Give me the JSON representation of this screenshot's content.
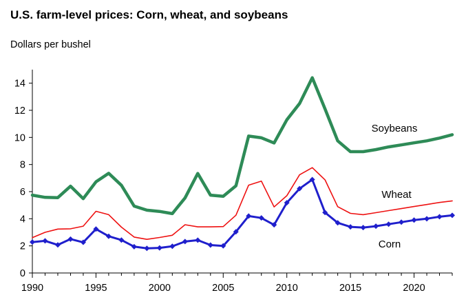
{
  "chart_data": {
    "type": "line",
    "title": "U.S. farm-level prices: Corn, wheat, and soybeans",
    "ylabel": "Dollars per bushel",
    "xlabel": "",
    "xlim": [
      1990,
      2023
    ],
    "ylim": [
      0,
      15
    ],
    "x_ticks": [
      1990,
      1995,
      2000,
      2005,
      2010,
      2015,
      2020
    ],
    "y_ticks": [
      0,
      2,
      4,
      6,
      8,
      10,
      12,
      14
    ],
    "grid": false,
    "x": [
      1990,
      1991,
      1992,
      1993,
      1994,
      1995,
      1996,
      1997,
      1998,
      1999,
      2000,
      2001,
      2002,
      2003,
      2004,
      2005,
      2006,
      2007,
      2008,
      2009,
      2010,
      2011,
      2012,
      2013,
      2014,
      2015,
      2016,
      2017,
      2018,
      2019,
      2020,
      2021,
      2022,
      2023
    ],
    "series": [
      {
        "name": "Soybeans",
        "color": "#2e8b57",
        "values": [
          5.74,
          5.58,
          5.56,
          6.4,
          5.48,
          6.72,
          7.35,
          6.47,
          4.93,
          4.63,
          4.54,
          4.38,
          5.53,
          7.34,
          5.74,
          5.66,
          6.43,
          10.1,
          9.97,
          9.59,
          11.3,
          12.5,
          14.4,
          12.1,
          9.75,
          8.95,
          8.95,
          9.1,
          9.3,
          9.45,
          9.6,
          9.75,
          9.95,
          10.2
        ]
      },
      {
        "name": "Wheat",
        "color": "#ee1111",
        "values": [
          2.61,
          3.0,
          3.24,
          3.26,
          3.45,
          4.55,
          4.3,
          3.38,
          2.65,
          2.48,
          2.62,
          2.78,
          3.56,
          3.4,
          3.4,
          3.42,
          4.26,
          6.48,
          6.78,
          4.87,
          5.7,
          7.24,
          7.77,
          6.87,
          4.89,
          4.4,
          4.3,
          4.45,
          4.6,
          4.75,
          4.9,
          5.05,
          5.2,
          5.32
        ]
      },
      {
        "name": "Corn",
        "color": "#1f1fcc",
        "values": [
          2.28,
          2.37,
          2.07,
          2.5,
          2.26,
          3.24,
          2.71,
          2.43,
          1.94,
          1.82,
          1.85,
          1.97,
          2.32,
          2.42,
          2.06,
          2.0,
          3.04,
          4.2,
          4.06,
          3.55,
          5.18,
          6.22,
          6.89,
          4.46,
          3.7,
          3.4,
          3.35,
          3.45,
          3.6,
          3.75,
          3.9,
          4.0,
          4.15,
          4.25
        ]
      }
    ]
  }
}
